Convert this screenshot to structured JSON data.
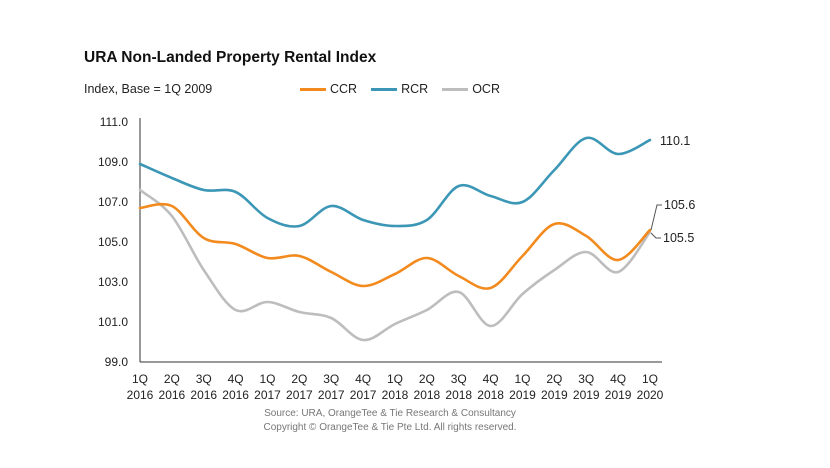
{
  "colors": {
    "CCR": "#F28A1E",
    "RCR": "#3B97B5",
    "OCR": "#BDBDBD"
  },
  "chart_data": {
    "type": "line",
    "title": "URA Non-Landed Property Rental Index",
    "ylabel": "Index, Base = 1Q 2009",
    "xlabel": "",
    "ylim": [
      99.0,
      111.0
    ],
    "yticks": [
      "111.0",
      "109.0",
      "107.0",
      "105.0",
      "103.0",
      "101.0",
      "99.0"
    ],
    "categories": [
      {
        "q": "1Q",
        "y": "2016"
      },
      {
        "q": "2Q",
        "y": "2016"
      },
      {
        "q": "3Q",
        "y": "2016"
      },
      {
        "q": "4Q",
        "y": "2016"
      },
      {
        "q": "1Q",
        "y": "2017"
      },
      {
        "q": "2Q",
        "y": "2017"
      },
      {
        "q": "3Q",
        "y": "2017"
      },
      {
        "q": "4Q",
        "y": "2017"
      },
      {
        "q": "1Q",
        "y": "2018"
      },
      {
        "q": "2Q",
        "y": "2018"
      },
      {
        "q": "3Q",
        "y": "2018"
      },
      {
        "q": "4Q",
        "y": "2018"
      },
      {
        "q": "1Q",
        "y": "2019"
      },
      {
        "q": "2Q",
        "y": "2019"
      },
      {
        "q": "3Q",
        "y": "2019"
      },
      {
        "q": "4Q",
        "y": "2019"
      },
      {
        "q": "1Q",
        "y": "2020"
      }
    ],
    "series": [
      {
        "name": "CCR",
        "values": [
          106.7,
          106.8,
          105.2,
          104.9,
          104.2,
          104.3,
          103.5,
          102.8,
          103.4,
          104.2,
          103.3,
          102.7,
          104.3,
          105.9,
          105.3,
          104.1,
          105.6
        ]
      },
      {
        "name": "RCR",
        "values": [
          108.9,
          108.2,
          107.6,
          107.5,
          106.2,
          105.8,
          106.8,
          106.1,
          105.8,
          106.1,
          107.8,
          107.3,
          107.0,
          108.6,
          110.2,
          109.4,
          110.1
        ]
      },
      {
        "name": "OCR",
        "values": [
          107.6,
          106.3,
          103.6,
          101.6,
          102.0,
          101.5,
          101.2,
          100.1,
          100.9,
          101.6,
          102.5,
          100.8,
          102.4,
          103.6,
          104.5,
          103.5,
          105.5
        ]
      }
    ],
    "end_labels": [
      {
        "series": "RCR",
        "text": "110.1"
      },
      {
        "series": "CCR",
        "text": "105.6"
      },
      {
        "series": "OCR",
        "text": "105.5"
      }
    ],
    "legend": "top",
    "grid": false
  },
  "source_lines": [
    "Source: URA, OrangeTee & Tie Research & Consultancy",
    "Copyright © OrangeTee & Tie Pte Ltd. All rights reserved."
  ]
}
